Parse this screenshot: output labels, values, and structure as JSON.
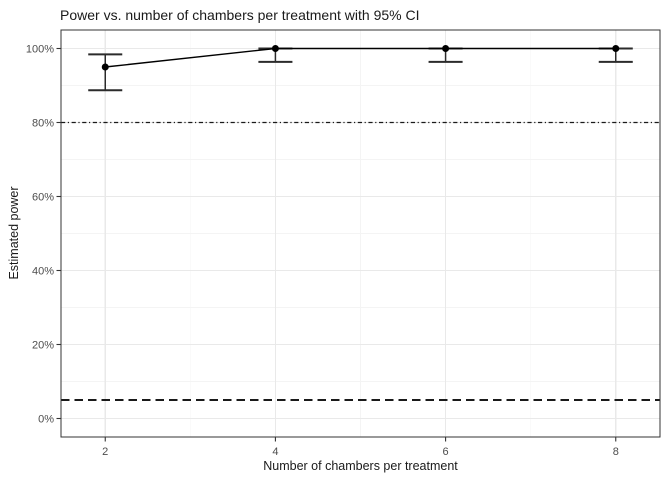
{
  "chart_data": {
    "type": "line",
    "title": "Power vs. number of chambers per treatment with 95% CI",
    "xlabel": "Number of chambers per treatment",
    "ylabel": "Estimated power",
    "x": [
      2,
      4,
      6,
      8
    ],
    "series": [
      {
        "name": "Estimated power",
        "values": [
          95,
          100,
          100,
          100
        ],
        "ci_low": [
          88.7,
          96.4,
          96.4,
          96.4
        ],
        "ci_high": [
          98.4,
          100,
          100,
          100
        ]
      }
    ],
    "reference_lines": [
      {
        "y": 80,
        "linetype": "dotdash"
      },
      {
        "y": 5,
        "linetype": "dashed"
      }
    ],
    "x_ticks": [
      2,
      4,
      6,
      8
    ],
    "x_tick_labels": [
      "2",
      "4",
      "6",
      "8"
    ],
    "x_minor": [
      3,
      5,
      7
    ],
    "y_ticks": [
      0,
      20,
      40,
      60,
      80,
      100
    ],
    "y_tick_labels": [
      "0%",
      "20%",
      "40%",
      "60%",
      "80%",
      "100%"
    ],
    "y_minor": [
      10,
      30,
      50,
      70,
      90
    ],
    "xlim": [
      1.48,
      8.52
    ],
    "ylim": [
      -5,
      105
    ],
    "grid": true,
    "legend_position": "none",
    "errorbar_cap_width_data_units": 0.4,
    "colors": {
      "point": "#000000",
      "line": "#000000",
      "errorbar": "#2b2b2b",
      "ref_line": "#1a1a1a",
      "grid_major": "#e9e9e9",
      "grid_minor": "#f4f4f4",
      "panel_border": "#333333",
      "tick_text": "#4d4d4d",
      "title_text": "#1a1a1a"
    }
  }
}
